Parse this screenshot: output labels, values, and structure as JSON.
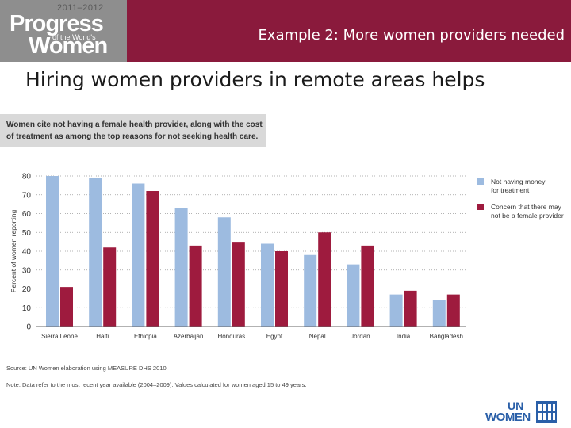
{
  "header": {
    "logo_years": "2011–2012",
    "logo_line1": "Progress",
    "logo_line2": "of the World's",
    "logo_line3": "Women",
    "title": "Example 2: More women providers needed"
  },
  "subtitle": "Hiring women providers in remote areas helps",
  "caption": "Women cite not having a female health provider, along with the cost of treatment as among the top reasons for not seeking health care.",
  "chart_data": {
    "type": "bar",
    "categories": [
      "Sierra Leone",
      "Haiti",
      "Ethiopia",
      "Azerbaijan",
      "Honduras",
      "Egypt",
      "Nepal",
      "Jordan",
      "India",
      "Bangladesh"
    ],
    "series": [
      {
        "name": "Not having money for treatment",
        "values": [
          80,
          79,
          76,
          63,
          58,
          44,
          38,
          33,
          17,
          14
        ],
        "color": "#9dbbe0"
      },
      {
        "name": "Concern that there may not be a female provider",
        "values": [
          21,
          42,
          72,
          43,
          45,
          40,
          50,
          43,
          19,
          17
        ],
        "color": "#9e1b3e"
      }
    ],
    "ylabel": "Percent of women reporting",
    "xlabel": "",
    "ylim": [
      0,
      80
    ],
    "yticks": [
      0,
      10,
      20,
      30,
      40,
      50,
      60,
      70,
      80
    ],
    "grid": true,
    "legend": "right"
  },
  "source": "Source: UN Women elaboration using MEASURE DHS 2010.",
  "note": "Note: Data refer to the most recent year available (2004–2009). Values calculated for women aged 15 to 49 years.",
  "footer_logo": {
    "line1": "UN",
    "line2": "WOMEN"
  }
}
